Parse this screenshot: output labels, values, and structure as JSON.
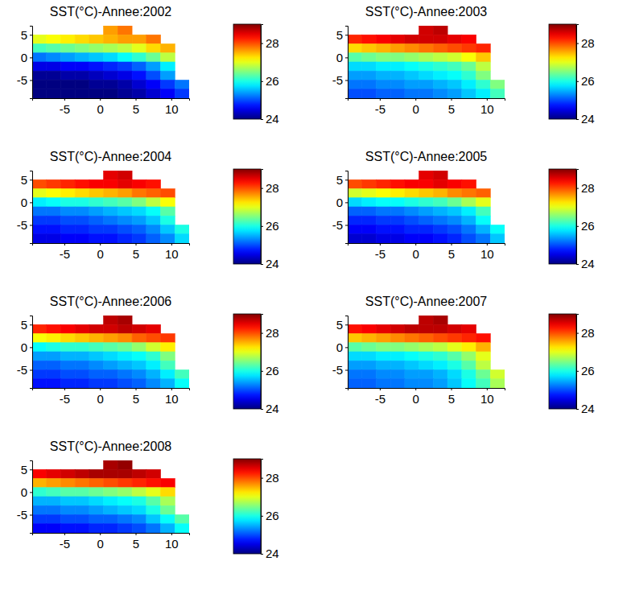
{
  "chart_data": [
    {
      "type": "heatmap",
      "title": "SST(°C)-Annee:2002",
      "x": [
        -8.5,
        -6.5,
        -4.5,
        -2.5,
        -0.5,
        1.5,
        3.5,
        5.5,
        7.5,
        9.5,
        11.5
      ],
      "y": [
        6,
        4,
        2,
        0,
        -2,
        -4,
        -6,
        -8
      ],
      "values": [
        [
          null,
          null,
          null,
          null,
          null,
          27.6,
          27.8,
          null,
          null,
          null,
          null
        ],
        [
          27.0,
          27.1,
          27.2,
          27.3,
          27.4,
          27.5,
          27.6,
          27.6,
          27.8,
          null,
          null
        ],
        [
          26.2,
          26.3,
          26.4,
          26.5,
          26.6,
          26.7,
          26.8,
          27.0,
          27.3,
          27.5,
          null
        ],
        [
          25.2,
          25.3,
          25.4,
          25.5,
          25.6,
          25.7,
          25.9,
          26.1,
          26.4,
          26.8,
          null
        ],
        [
          24.5,
          24.5,
          24.6,
          24.6,
          24.7,
          24.8,
          24.9,
          25.1,
          25.4,
          25.8,
          null
        ],
        [
          24.1,
          24.1,
          24.2,
          24.2,
          24.3,
          24.4,
          24.5,
          24.7,
          25.0,
          25.4,
          null
        ],
        [
          24.0,
          24.0,
          24.0,
          24.0,
          24.1,
          24.1,
          24.2,
          24.4,
          24.6,
          24.9,
          25.2
        ],
        [
          24.0,
          24.0,
          24.0,
          24.0,
          24.0,
          24.0,
          24.1,
          24.2,
          24.4,
          24.6,
          24.9
        ]
      ],
      "xlim": [
        -9.5,
        12.5
      ],
      "ylim": [
        -9,
        7
      ],
      "xticks": [
        -5,
        0,
        5,
        10
      ],
      "yticks": [
        -5,
        0,
        5
      ],
      "colorbar": {
        "range": [
          24,
          29
        ],
        "ticks": [
          24,
          26,
          28
        ]
      }
    },
    {
      "type": "heatmap",
      "title": "SST(°C)-Annee:2003",
      "x": [
        -8.5,
        -6.5,
        -4.5,
        -2.5,
        -0.5,
        1.5,
        3.5,
        5.5,
        7.5,
        9.5,
        11.5
      ],
      "y": [
        6,
        4,
        2,
        0,
        -2,
        -4,
        -6,
        -8
      ],
      "values": [
        [
          null,
          null,
          null,
          null,
          null,
          28.6,
          28.7,
          null,
          null,
          null,
          null
        ],
        [
          28.2,
          28.3,
          28.4,
          28.5,
          28.6,
          28.6,
          28.6,
          28.5,
          28.4,
          null,
          null
        ],
        [
          27.3,
          27.4,
          27.5,
          27.6,
          27.7,
          27.8,
          27.9,
          28.0,
          28.1,
          28.2,
          null
        ],
        [
          26.3,
          26.4,
          26.5,
          26.5,
          26.6,
          26.7,
          26.8,
          26.9,
          27.1,
          27.4,
          null
        ],
        [
          25.7,
          25.7,
          25.8,
          25.8,
          25.9,
          26.0,
          26.1,
          26.2,
          26.4,
          26.8,
          null
        ],
        [
          25.4,
          25.4,
          25.5,
          25.5,
          25.6,
          25.7,
          25.8,
          25.9,
          26.1,
          26.5,
          null
        ],
        [
          25.2,
          25.2,
          25.3,
          25.3,
          25.4,
          25.4,
          25.5,
          25.6,
          25.8,
          26.1,
          26.5
        ],
        [
          25.0,
          25.0,
          25.1,
          25.1,
          25.2,
          25.2,
          25.3,
          25.4,
          25.6,
          25.8,
          26.2
        ]
      ],
      "xlim": [
        -9.5,
        12.5
      ],
      "ylim": [
        -9,
        7
      ],
      "xticks": [
        -5,
        0,
        5,
        10
      ],
      "yticks": [
        -5,
        0,
        5
      ],
      "colorbar": {
        "range": [
          24,
          29
        ],
        "ticks": [
          24,
          26,
          28
        ]
      }
    },
    {
      "type": "heatmap",
      "title": "SST(°C)-Annee:2004",
      "x": [
        -8.5,
        -6.5,
        -4.5,
        -2.5,
        -0.5,
        1.5,
        3.5,
        5.5,
        7.5,
        9.5,
        11.5
      ],
      "y": [
        6,
        4,
        2,
        0,
        -2,
        -4,
        -6,
        -8
      ],
      "values": [
        [
          null,
          null,
          null,
          null,
          null,
          28.5,
          28.6,
          null,
          null,
          null,
          null
        ],
        [
          28.0,
          28.1,
          28.2,
          28.3,
          28.4,
          28.4,
          28.5,
          28.4,
          28.3,
          null,
          null
        ],
        [
          27.0,
          27.1,
          27.2,
          27.3,
          27.4,
          27.5,
          27.6,
          27.8,
          27.9,
          28.0,
          null
        ],
        [
          25.8,
          25.9,
          26.0,
          26.0,
          26.1,
          26.2,
          26.3,
          26.5,
          26.8,
          27.1,
          null
        ],
        [
          25.2,
          25.2,
          25.3,
          25.3,
          25.4,
          25.5,
          25.6,
          25.7,
          25.9,
          26.3,
          null
        ],
        [
          24.9,
          24.9,
          25.0,
          25.0,
          25.1,
          25.2,
          25.3,
          25.4,
          25.6,
          26.0,
          null
        ],
        [
          24.7,
          24.7,
          24.8,
          24.8,
          24.9,
          24.9,
          25.0,
          25.1,
          25.3,
          25.6,
          26.0
        ],
        [
          24.5,
          24.5,
          24.6,
          24.6,
          24.7,
          24.7,
          24.8,
          24.9,
          25.1,
          25.3,
          25.7
        ]
      ],
      "xlim": [
        -9.5,
        12.5
      ],
      "ylim": [
        -9,
        7
      ],
      "xticks": [
        -5,
        0,
        5,
        10
      ],
      "yticks": [
        -5,
        0,
        5
      ],
      "colorbar": {
        "range": [
          24,
          29
        ],
        "ticks": [
          24,
          26,
          28
        ]
      }
    },
    {
      "type": "heatmap",
      "title": "SST(°C)-Annee:2005",
      "x": [
        -8.5,
        -6.5,
        -4.5,
        -2.5,
        -0.5,
        1.5,
        3.5,
        5.5,
        7.5,
        9.5,
        11.5
      ],
      "y": [
        6,
        4,
        2,
        0,
        -2,
        -4,
        -6,
        -8
      ],
      "values": [
        [
          null,
          null,
          null,
          null,
          null,
          28.5,
          28.6,
          null,
          null,
          null,
          null
        ],
        [
          28.0,
          28.1,
          28.2,
          28.3,
          28.4,
          28.4,
          28.5,
          28.4,
          28.3,
          null,
          null
        ],
        [
          26.9,
          27.0,
          27.1,
          27.2,
          27.3,
          27.4,
          27.5,
          27.7,
          27.8,
          27.9,
          null
        ],
        [
          25.7,
          25.8,
          25.9,
          25.9,
          26.0,
          26.1,
          26.2,
          26.4,
          26.7,
          27.0,
          null
        ],
        [
          25.1,
          25.1,
          25.2,
          25.2,
          25.3,
          25.4,
          25.5,
          25.6,
          25.8,
          26.2,
          null
        ],
        [
          24.8,
          24.8,
          24.9,
          24.9,
          25.0,
          25.1,
          25.2,
          25.3,
          25.5,
          25.9,
          null
        ],
        [
          24.6,
          24.6,
          24.7,
          24.7,
          24.8,
          24.8,
          24.9,
          25.0,
          25.2,
          25.5,
          25.9
        ],
        [
          24.4,
          24.4,
          24.5,
          24.5,
          24.6,
          24.6,
          24.7,
          24.8,
          25.0,
          25.2,
          25.6
        ]
      ],
      "xlim": [
        -9.5,
        12.5
      ],
      "ylim": [
        -9,
        7
      ],
      "xticks": [
        -5,
        0,
        5,
        10
      ],
      "yticks": [
        -5,
        0,
        5
      ],
      "colorbar": {
        "range": [
          24,
          29
        ],
        "ticks": [
          24,
          26,
          28
        ]
      }
    },
    {
      "type": "heatmap",
      "title": "SST(°C)-Annee:2006",
      "x": [
        -8.5,
        -6.5,
        -4.5,
        -2.5,
        -0.5,
        1.5,
        3.5,
        5.5,
        7.5,
        9.5,
        11.5
      ],
      "y": [
        6,
        4,
        2,
        0,
        -2,
        -4,
        -6,
        -8
      ],
      "values": [
        [
          null,
          null,
          null,
          null,
          null,
          28.7,
          28.8,
          null,
          null,
          null,
          null
        ],
        [
          28.2,
          28.3,
          28.4,
          28.5,
          28.6,
          28.6,
          28.7,
          28.6,
          28.5,
          null,
          null
        ],
        [
          27.1,
          27.2,
          27.3,
          27.4,
          27.5,
          27.6,
          27.7,
          27.9,
          28.0,
          28.1,
          null
        ],
        [
          25.9,
          26.0,
          26.1,
          26.1,
          26.2,
          26.3,
          26.4,
          26.6,
          26.9,
          27.2,
          null
        ],
        [
          25.4,
          25.4,
          25.5,
          25.5,
          25.6,
          25.7,
          25.8,
          25.9,
          26.1,
          26.5,
          null
        ],
        [
          25.1,
          25.1,
          25.2,
          25.2,
          25.3,
          25.4,
          25.5,
          25.6,
          25.8,
          26.2,
          null
        ],
        [
          24.9,
          24.9,
          25.0,
          25.0,
          25.1,
          25.1,
          25.2,
          25.3,
          25.5,
          25.8,
          26.2
        ],
        [
          24.7,
          24.7,
          24.8,
          24.8,
          24.9,
          24.9,
          25.0,
          25.1,
          25.3,
          25.5,
          25.9
        ]
      ],
      "xlim": [
        -9.5,
        12.5
      ],
      "ylim": [
        -9,
        7
      ],
      "xticks": [
        -5,
        0,
        5,
        10
      ],
      "yticks": [
        -5,
        0,
        5
      ],
      "colorbar": {
        "range": [
          24,
          29
        ],
        "ticks": [
          24,
          26,
          28
        ]
      }
    },
    {
      "type": "heatmap",
      "title": "SST(°C)-Annee:2007",
      "x": [
        -8.5,
        -6.5,
        -4.5,
        -2.5,
        -0.5,
        1.5,
        3.5,
        5.5,
        7.5,
        9.5,
        11.5
      ],
      "y": [
        6,
        4,
        2,
        0,
        -2,
        -4,
        -6,
        -8
      ],
      "values": [
        [
          null,
          null,
          null,
          null,
          null,
          28.7,
          28.8,
          null,
          null,
          null,
          null
        ],
        [
          28.3,
          28.4,
          28.5,
          28.6,
          28.7,
          28.7,
          28.7,
          28.6,
          28.5,
          null,
          null
        ],
        [
          27.4,
          27.5,
          27.6,
          27.7,
          27.8,
          27.9,
          28.0,
          28.1,
          28.2,
          28.3,
          null
        ],
        [
          26.3,
          26.4,
          26.5,
          26.5,
          26.6,
          26.7,
          26.8,
          27.0,
          27.2,
          27.5,
          null
        ],
        [
          25.7,
          25.7,
          25.8,
          25.8,
          25.9,
          26.0,
          26.1,
          26.3,
          26.6,
          27.0,
          null
        ],
        [
          25.4,
          25.4,
          25.5,
          25.5,
          25.6,
          25.7,
          25.8,
          26.0,
          26.3,
          26.8,
          null
        ],
        [
          25.2,
          25.2,
          25.3,
          25.3,
          25.4,
          25.4,
          25.5,
          25.7,
          26.0,
          26.4,
          26.9
        ],
        [
          25.1,
          25.1,
          25.2,
          25.2,
          25.3,
          25.3,
          25.4,
          25.6,
          25.9,
          26.2,
          26.7
        ]
      ],
      "xlim": [
        -9.5,
        12.5
      ],
      "ylim": [
        -9,
        7
      ],
      "xticks": [
        -5,
        0,
        5,
        10
      ],
      "yticks": [
        -5,
        0,
        5
      ],
      "colorbar": {
        "range": [
          24,
          29
        ],
        "ticks": [
          24,
          26,
          28
        ]
      }
    },
    {
      "type": "heatmap",
      "title": "SST(°C)-Annee:2008",
      "x": [
        -8.5,
        -6.5,
        -4.5,
        -2.5,
        -0.5,
        1.5,
        3.5,
        5.5,
        7.5,
        9.5,
        11.5
      ],
      "y": [
        6,
        4,
        2,
        0,
        -2,
        -4,
        -6,
        -8
      ],
      "values": [
        [
          null,
          null,
          null,
          null,
          null,
          28.8,
          28.9,
          null,
          null,
          null,
          null
        ],
        [
          28.4,
          28.5,
          28.6,
          28.7,
          28.8,
          28.8,
          28.8,
          28.7,
          28.6,
          null,
          null
        ],
        [
          27.5,
          27.6,
          27.7,
          27.8,
          27.9,
          28.0,
          28.1,
          28.2,
          28.3,
          28.4,
          null
        ],
        [
          26.1,
          26.2,
          26.3,
          26.3,
          26.4,
          26.5,
          26.6,
          26.8,
          27.0,
          27.3,
          null
        ],
        [
          25.5,
          25.5,
          25.6,
          25.6,
          25.7,
          25.8,
          25.9,
          26.0,
          26.3,
          26.7,
          null
        ],
        [
          25.2,
          25.2,
          25.3,
          25.3,
          25.4,
          25.5,
          25.6,
          25.7,
          26.0,
          26.4,
          null
        ],
        [
          24.9,
          24.9,
          25.0,
          25.0,
          25.1,
          25.1,
          25.2,
          25.3,
          25.6,
          25.9,
          26.3
        ],
        [
          24.6,
          24.6,
          24.7,
          24.7,
          24.8,
          24.8,
          24.9,
          25.0,
          25.2,
          25.5,
          25.9
        ]
      ],
      "xlim": [
        -9.5,
        12.5
      ],
      "ylim": [
        -9,
        7
      ],
      "xticks": [
        -5,
        0,
        5,
        10
      ],
      "yticks": [
        -5,
        0,
        5
      ],
      "colorbar": {
        "range": [
          24,
          29
        ],
        "ticks": [
          24,
          26,
          28
        ]
      }
    }
  ]
}
